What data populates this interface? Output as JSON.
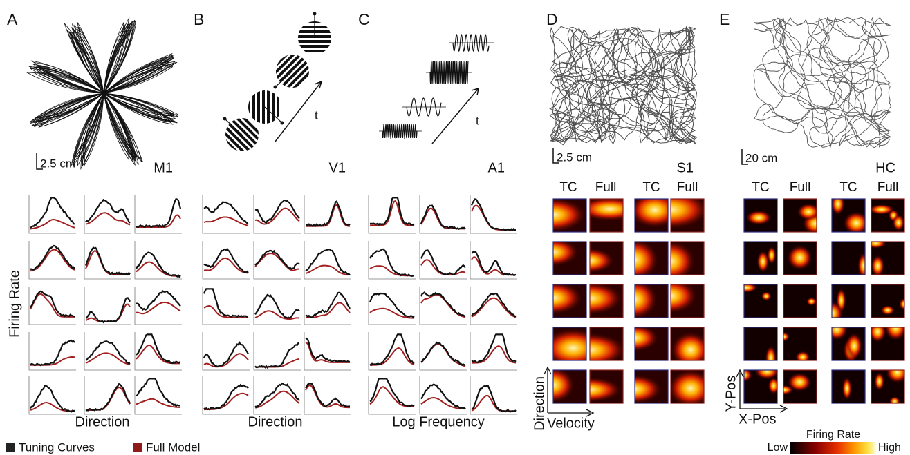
{
  "panels": [
    {
      "letter": "A",
      "region": "M1",
      "scale_bar": "2.5 cm",
      "x_label": "Direction"
    },
    {
      "letter": "B",
      "region": "V1",
      "time_label": "t",
      "x_label": "Direction"
    },
    {
      "letter": "C",
      "region": "A1",
      "time_label": "t",
      "x_label": "Log Frequency"
    },
    {
      "letter": "D",
      "region": "S1",
      "scale_bar": "2.5 cm",
      "headers": [
        "TC",
        "Full",
        "TC",
        "Full"
      ],
      "y_label": "Direction",
      "x_label": "Velocity"
    },
    {
      "letter": "E",
      "region": "HC",
      "scale_bar": "20 cm",
      "headers": [
        "TC",
        "Full",
        "TC",
        "Full"
      ],
      "y_label": "Y-Pos",
      "x_label": "X-Pos"
    }
  ],
  "y_label": "Firing Rate",
  "legend": [
    "Tuning Curves",
    "Full Model"
  ],
  "colorbar": {
    "title": "Firing Rate",
    "low": "Low",
    "high": "High"
  }
}
